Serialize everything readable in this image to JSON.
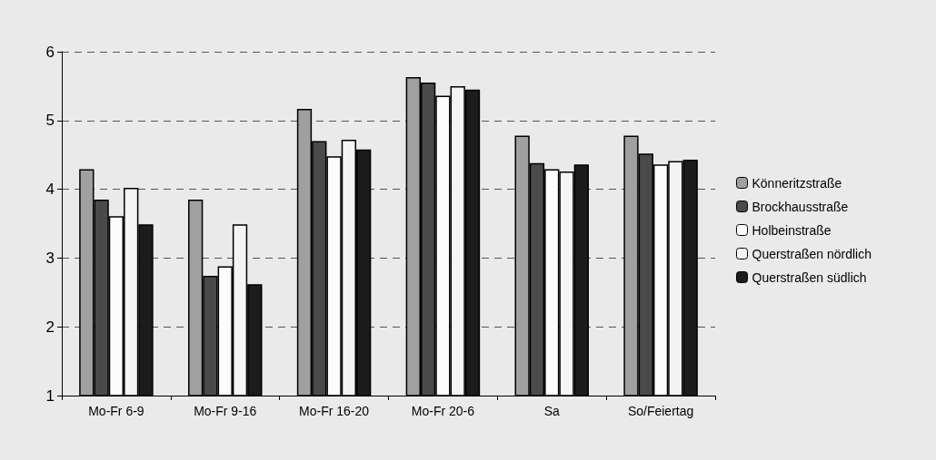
{
  "chart_data": {
    "type": "bar",
    "categories": [
      "Mo-Fr 6-9",
      "Mo-Fr 9-16",
      "Mo-Fr 16-20",
      "Mo-Fr 20-6",
      "Sa",
      "So/Feiertag"
    ],
    "series": [
      {
        "name": "Könneritzstraße",
        "color": "#a0a0a0",
        "values": [
          4.29,
          3.85,
          5.17,
          5.63,
          4.78,
          4.78
        ]
      },
      {
        "name": "Brockhausstraße",
        "color": "#4a4a4a",
        "values": [
          3.85,
          2.74,
          4.7,
          5.55,
          4.38,
          4.52
        ]
      },
      {
        "name": "Holbeinstraße",
        "color": "#fcfcfc",
        "values": [
          3.61,
          2.88,
          4.48,
          5.36,
          4.29,
          4.36
        ]
      },
      {
        "name": "Querstraßen nördlich",
        "color": "#f4f4f4",
        "values": [
          4.02,
          3.49,
          4.72,
          5.5,
          4.26,
          4.41
        ]
      },
      {
        "name": "Querstraßen südlich",
        "color": "#1c1c1c",
        "values": [
          3.49,
          2.62,
          4.58,
          5.45,
          4.36,
          4.43
        ]
      }
    ],
    "ylim": [
      1,
      6
    ],
    "yticks": [
      1,
      2,
      3,
      4,
      5,
      6
    ],
    "grid": "y",
    "legend": "right"
  }
}
